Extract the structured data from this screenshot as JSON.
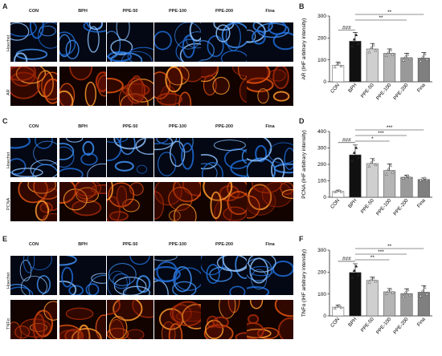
{
  "panels": [
    {
      "letter": "A",
      "columns": [
        "CON",
        "BPH",
        "PPE-50",
        "PPE-100",
        "PPE-200",
        "Fina"
      ],
      "rows": [
        "Hoechst",
        "AR"
      ]
    },
    {
      "letter": "C",
      "columns": [
        "CON",
        "BPH",
        "PPE-50",
        "PPE-100",
        "PPE-200",
        "Fina"
      ],
      "rows": [
        "Hoechst",
        "PCNA"
      ]
    },
    {
      "letter": "E",
      "columns": [
        "CON",
        "BPH",
        "PPE-50",
        "PPE-100",
        "PPE-200",
        "Fina"
      ],
      "rows": [
        "Hoechst",
        "TNFα"
      ]
    }
  ],
  "chart_data": [
    {
      "letter": "B",
      "type": "bar",
      "categories": [
        "CON",
        "BPH",
        "PPE-50",
        "PPE-100",
        "PPE-200",
        "Fina"
      ],
      "values": [
        75,
        185,
        150,
        130,
        110,
        108
      ],
      "errors": [
        15,
        40,
        25,
        20,
        20,
        25
      ],
      "ylabel": "AR (IHF arbitrary intensity)",
      "ylim": [
        0,
        300
      ],
      "yticks": [
        0,
        100,
        200,
        300
      ],
      "significance": [
        {
          "from": "CON",
          "to": "BPH",
          "label": "###"
        },
        {
          "from": "BPH",
          "to": "Fina",
          "label": "**"
        },
        {
          "from": "BPH",
          "to": "PPE-200",
          "label": "**"
        }
      ],
      "colors": [
        "#ffffff",
        "#111111",
        "#cfcfcf",
        "#b4b4b4",
        "#999999",
        "#7f7f7f"
      ]
    },
    {
      "letter": "D",
      "type": "bar",
      "categories": [
        "CON",
        "BPH",
        "PPE-50",
        "PPE-100",
        "PPE-200",
        "Fina"
      ],
      "values": [
        35,
        258,
        205,
        163,
        122,
        108
      ],
      "errors": [
        8,
        60,
        30,
        40,
        12,
        10
      ],
      "ylabel": "PCNA (IHF arbitrary intensity)",
      "ylim": [
        0,
        400
      ],
      "yticks": [
        0,
        100,
        200,
        300,
        400
      ],
      "significance": [
        {
          "from": "CON",
          "to": "BPH",
          "label": "###"
        },
        {
          "from": "BPH",
          "to": "Fina",
          "label": "***"
        },
        {
          "from": "BPH",
          "to": "PPE-200",
          "label": "***"
        },
        {
          "from": "BPH",
          "to": "PPE-100",
          "label": "*"
        }
      ],
      "colors": [
        "#ffffff",
        "#111111",
        "#cfcfcf",
        "#b4b4b4",
        "#999999",
        "#7f7f7f"
      ]
    },
    {
      "letter": "F",
      "type": "bar",
      "categories": [
        "CON",
        "BPH",
        "PPE-50",
        "PPE-100",
        "PPE-200",
        "Fina"
      ],
      "values": [
        40,
        198,
        162,
        110,
        102,
        108
      ],
      "errors": [
        10,
        40,
        15,
        15,
        22,
        30
      ],
      "ylabel": "TNFα (IHF arbitrary intensity)",
      "ylim": [
        0,
        300
      ],
      "yticks": [
        0,
        100,
        200,
        300
      ],
      "significance": [
        {
          "from": "CON",
          "to": "BPH",
          "label": "###"
        },
        {
          "from": "BPH",
          "to": "Fina",
          "label": "**"
        },
        {
          "from": "BPH",
          "to": "PPE-200",
          "label": "***"
        },
        {
          "from": "BPH",
          "to": "PPE-100",
          "label": "**"
        }
      ],
      "colors": [
        "#ffffff",
        "#111111",
        "#cfcfcf",
        "#b4b4b4",
        "#999999",
        "#7f7f7f"
      ]
    }
  ]
}
